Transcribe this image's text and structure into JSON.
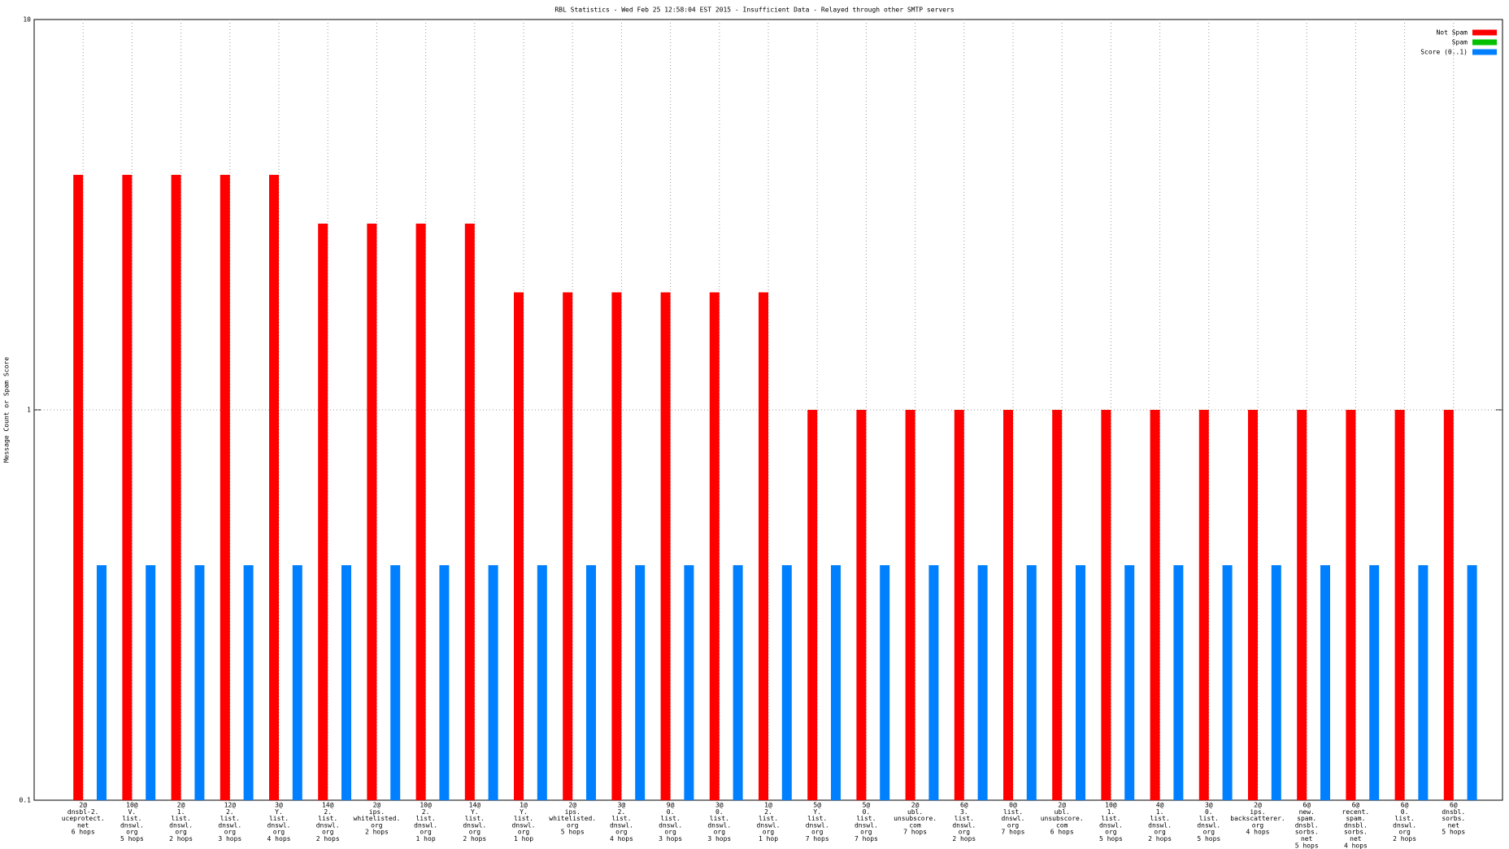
{
  "chart_data": {
    "type": "bar",
    "title": "RBL Statistics - Wed Feb 25 12:58:04 EST 2015 - Insufficient Data - Relayed through other SMTP servers",
    "y_label": "Message Count or Spam Score",
    "y_log": true,
    "grid": true,
    "legend": "top-right",
    "ylim": [
      0.1,
      10
    ],
    "yticks": [
      0.1,
      1,
      10
    ],
    "categories": [
      [
        "2@",
        "dnsbl-2.",
        "uceprotect.",
        "net",
        "6 hops"
      ],
      [
        "10@",
        "V.",
        "list.",
        "dnswl.",
        "org",
        "5 hops"
      ],
      [
        "2@",
        "1.",
        "list.",
        "dnswl.",
        "org",
        "2 hops"
      ],
      [
        "12@",
        "2.",
        "list.",
        "dnswl.",
        "org",
        "3 hops"
      ],
      [
        "3@",
        "Y.",
        "list.",
        "dnswl.",
        "org",
        "4 hops"
      ],
      [
        "14@",
        "2.",
        "list.",
        "dnswl.",
        "org",
        "2 hops"
      ],
      [
        "2@",
        "ips.",
        "whitelisted.",
        "org",
        "2 hops"
      ],
      [
        "10@",
        "2.",
        "list.",
        "dnswl.",
        "org",
        "1 hop"
      ],
      [
        "14@",
        "Y.",
        "list.",
        "dnswl.",
        "org",
        "2 hops"
      ],
      [
        "1@",
        "Y.",
        "list.",
        "dnswl.",
        "org",
        "1 hop"
      ],
      [
        "2@",
        "ips.",
        "whitelisted.",
        "org",
        "5 hops"
      ],
      [
        "3@",
        "2.",
        "list.",
        "dnswl.",
        "org",
        "4 hops"
      ],
      [
        "9@",
        "0.",
        "list.",
        "dnswl.",
        "org",
        "3 hops"
      ],
      [
        "3@",
        "0.",
        "list.",
        "dnswl.",
        "org",
        "3 hops"
      ],
      [
        "1@",
        "2.",
        "list.",
        "dnswl.",
        "org",
        "1 hop"
      ],
      [
        "5@",
        "Y.",
        "list.",
        "dnswl.",
        "org",
        "7 hops"
      ],
      [
        "5@",
        "0.",
        "list.",
        "dnswl.",
        "org",
        "7 hops"
      ],
      [
        "2@",
        "ubl.",
        "unsubscore.",
        "com",
        "7 hops"
      ],
      [
        "6@",
        "3.",
        "list.",
        "dnswl.",
        "org",
        "2 hops"
      ],
      [
        "0@",
        "list.",
        "dnswl.",
        "org",
        "7 hops"
      ],
      [
        "2@",
        "ubl.",
        "unsubscore.",
        "com",
        "6 hops"
      ],
      [
        "10@",
        "1.",
        "list.",
        "dnswl.",
        "org",
        "5 hops"
      ],
      [
        "4@",
        "1.",
        "list.",
        "dnswl.",
        "org",
        "2 hops"
      ],
      [
        "3@",
        "0.",
        "list.",
        "dnswl.",
        "org",
        "5 hops"
      ],
      [
        "2@",
        "ips.",
        "backscatterer.",
        "org",
        "4 hops"
      ],
      [
        "6@",
        "new.",
        "spam.",
        "dnsbl.",
        "sorbs.",
        "net",
        "5 hops"
      ],
      [
        "6@",
        "recent.",
        "spam.",
        "dnsbl.",
        "sorbs.",
        "net",
        "4 hops"
      ],
      [
        "6@",
        "0.",
        "list.",
        "dnswl.",
        "org",
        "2 hops"
      ],
      [
        "6@",
        "dnsbl.",
        "sorbs.",
        "net",
        "5 hops"
      ]
    ],
    "series": [
      {
        "name": "Not Spam",
        "color": "#ff0000",
        "values": [
          4,
          4,
          4,
          4,
          4,
          3,
          3,
          3,
          3,
          2,
          2,
          2,
          2,
          2,
          2,
          1,
          1,
          1,
          1,
          1,
          1,
          1,
          1,
          1,
          1,
          1,
          1,
          1,
          1
        ]
      },
      {
        "name": "Spam",
        "color": "#00c000",
        "values": [
          null,
          null,
          null,
          null,
          null,
          null,
          null,
          null,
          null,
          null,
          null,
          null,
          null,
          null,
          null,
          null,
          null,
          null,
          null,
          null,
          null,
          null,
          null,
          null,
          null,
          null,
          null,
          null,
          null
        ]
      },
      {
        "name": "Score (0..1)",
        "color": "#0080ff",
        "values": [
          0.4,
          0.4,
          0.4,
          0.4,
          0.4,
          0.4,
          0.4,
          0.4,
          0.4,
          0.4,
          0.4,
          0.4,
          0.4,
          0.4,
          0.4,
          0.4,
          0.4,
          0.4,
          0.4,
          0.4,
          0.4,
          0.4,
          0.4,
          0.4,
          0.4,
          0.4,
          0.4,
          0.4,
          0.4
        ]
      }
    ]
  }
}
